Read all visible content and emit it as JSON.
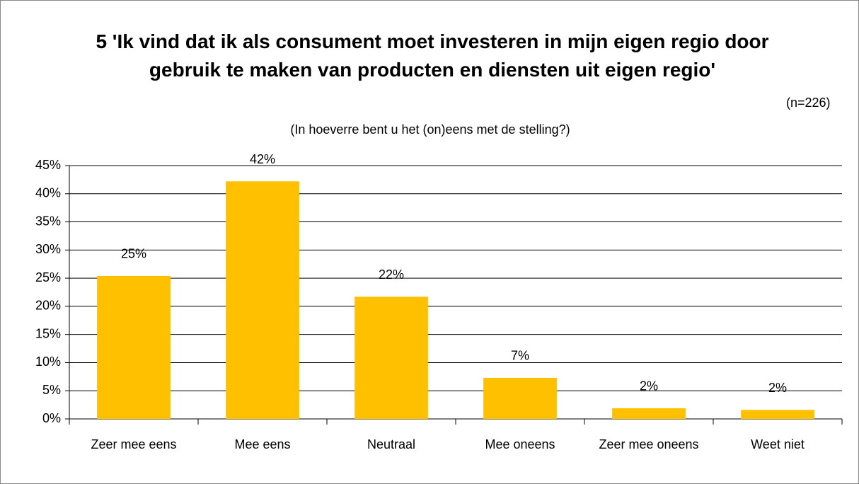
{
  "chart_data": {
    "type": "bar",
    "title": "5 'Ik vind dat ik als consument moet investeren in mijn eigen regio door gebruik te maken van producten en diensten uit eigen regio'",
    "subtitle": "(In hoeverre bent u het (on)eens met de stelling?)",
    "annotation": "(n=226)",
    "categories": [
      "Zeer mee eens",
      "Mee eens",
      "Neutraal",
      "Mee oneens",
      "Zeer mee oneens",
      "Weet niet"
    ],
    "values": [
      25.4,
      42.2,
      21.7,
      7.3,
      1.9,
      1.6
    ],
    "value_labels": [
      "25%",
      "42%",
      "22%",
      "7%",
      "2%",
      "2%"
    ],
    "color": "#ffc000",
    "ylim": [
      0,
      45
    ],
    "yticks": [
      {
        "value": 0,
        "label": "0%"
      },
      {
        "value": 5,
        "label": "5%"
      },
      {
        "value": 10,
        "label": "10%"
      },
      {
        "value": 15,
        "label": "15%"
      },
      {
        "value": 20,
        "label": "20%"
      },
      {
        "value": 25,
        "label": "25%"
      },
      {
        "value": 30,
        "label": "30%"
      },
      {
        "value": 35,
        "label": "35%"
      },
      {
        "value": 40,
        "label": "40%"
      },
      {
        "value": 45,
        "label": "45%"
      }
    ],
    "grid": true
  }
}
